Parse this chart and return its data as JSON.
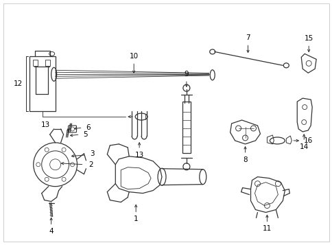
{
  "background_color": "#ffffff",
  "line_color": "#333333",
  "label_color": "#000000",
  "fig_width": 4.85,
  "fig_height": 3.57,
  "dpi": 100
}
